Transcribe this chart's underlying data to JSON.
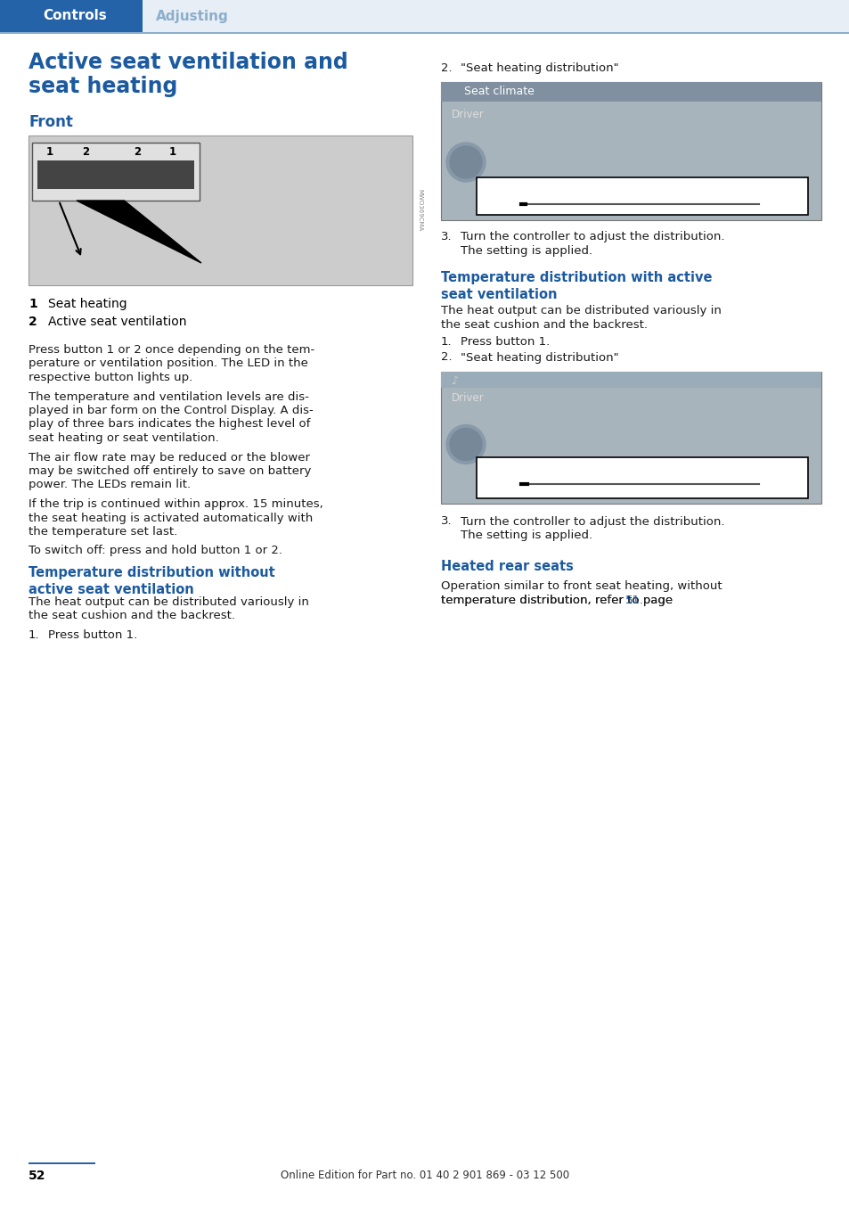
{
  "page_num": "52",
  "footer_text": "Online Edition for Part no. 01 40 2 901 869 - 03 12 500",
  "header_tab1": "Controls",
  "header_tab2": "Adjusting",
  "header_tab1_color": "#2563a8",
  "header_tab2_color": "#8aaecc",
  "header_line_color": "#8aaecc",
  "title": "Active seat ventilation and\nseat heating",
  "title_color": "#1c5aa0",
  "section_front": "Front",
  "section_front_color": "#1c5aa0",
  "label1_num": "1",
  "label1_text": "Seat heating",
  "label2_num": "2",
  "label2_text": "Active seat ventilation",
  "para1": "Press button 1 or 2 once depending on the tem-\nperature or ventilation position. The LED in the\nrespective button lights up.",
  "para2": "The temperature and ventilation levels are dis-\nplayed in bar form on the Control Display. A dis-\nplay of three bars indicates the highest level of\nseat heating or seat ventilation.",
  "para3": "The air flow rate may be reduced or the blower\nmay be switched off entirely to save on battery\npower. The LEDs remain lit.",
  "para4": "If the trip is continued within approx. 15 minutes,\nthe seat heating is activated automatically with\nthe temperature set last.",
  "para5": "To switch off: press and hold button 1 or 2.",
  "sec2_title": "Temperature distribution without\nactive seat ventilation",
  "sec2_color": "#1c5aa0",
  "sec2_para": "The heat output can be distributed variously in\nthe seat cushion and the backrest.",
  "sec2_step1": "Press button 1.",
  "right_step2a": "\"Seat heating distribution\"",
  "right_step3a_l1": "Turn the controller to adjust the distribution.",
  "right_step3a_l2": "The setting is applied.",
  "sec3_title": "Temperature distribution with active\nseat ventilation",
  "sec3_color": "#1c5aa0",
  "sec3_para": "The heat output can be distributed variously in\nthe seat cushion and the backrest.",
  "sec3_step1": "Press button 1.",
  "sec3_step2": "\"Seat heating distribution\"",
  "right_step3b_l1": "Turn the controller to adjust the distribution.",
  "right_step3b_l2": "The setting is applied.",
  "sec4_title": "Heated rear seats",
  "sec4_color": "#1c5aa0",
  "sec4_para_pre": "Operation similar to front seat heating, without\ntemperature distribution, refer to page ",
  "sec4_page": "51",
  "sec4_para_post": ".",
  "bg_color": "#ffffff",
  "text_color": "#1a1a1a",
  "img_car_color": "#d0d0d0",
  "img_screen1_bg": "#a8b4bc",
  "img_screen2_bg": "#a8b4bc",
  "img_bar_color": "#5a6e7a",
  "img_header_color": "#8090a0"
}
